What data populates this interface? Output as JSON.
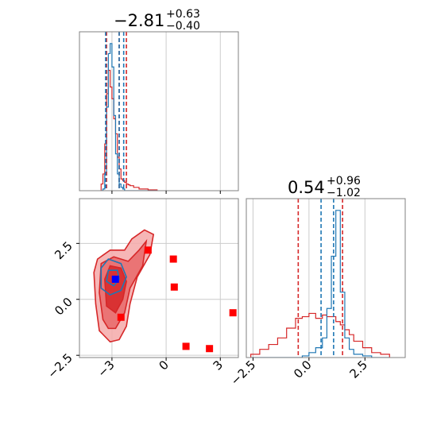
{
  "colors": {
    "red": "#d62728",
    "red_fill_dark": "#d62728",
    "red_fill_light": "#f2a0a0",
    "blue": "#1f77b4",
    "marker_red": "#ff0000",
    "marker_blue": "#0000ff",
    "grid": "#cccccc",
    "frame": "#808080"
  },
  "chart_data": [
    {
      "panel": "top-left",
      "type": "histogram",
      "title_value": "−2.81",
      "title_sup": "+0.63",
      "title_sub": "−0.40",
      "xlim": [
        -4.8,
        4.0
      ],
      "grid": true,
      "x_bins": [
        -3.6,
        -3.5,
        -3.4,
        -3.3,
        -3.2,
        -3.1,
        -3.0,
        -2.9,
        -2.8,
        -2.7,
        -2.6,
        -2.5,
        -2.4,
        -2.3,
        -2.2,
        -2.1,
        -2.0,
        -1.8,
        -1.5,
        -1.0,
        -0.5
      ],
      "series": [
        {
          "name": "",
          "color": "red",
          "counts": [
            0.04,
            0.1,
            0.28,
            0.58,
            0.72,
            0.62,
            0.55,
            0.43,
            0.34,
            0.2,
            0.13,
            0.07,
            0.06,
            0.05,
            0.04,
            0.035,
            0.03,
            0.02,
            0.01,
            0.005
          ]
        },
        {
          "name": "",
          "color": "blue",
          "counts": [
            0.0,
            0.01,
            0.1,
            0.5,
            0.82,
            0.88,
            0.74,
            0.45,
            0.22,
            0.1,
            0.04,
            0.02,
            0.01,
            0.0,
            0.0,
            0.0,
            0.0,
            0.0,
            0.0,
            0.0
          ]
        }
      ],
      "vlines": [
        {
          "x": -3.3,
          "color": "red"
        },
        {
          "x": -2.6,
          "color": "red"
        },
        {
          "x": -2.2,
          "color": "red"
        },
        {
          "x": -3.35,
          "color": "blue"
        },
        {
          "x": -2.6,
          "color": "blue"
        },
        {
          "x": -2.35,
          "color": "blue"
        }
      ]
    },
    {
      "panel": "bottom-right",
      "type": "histogram",
      "title_value": "0.54",
      "title_sup": "+0.96",
      "title_sub": "−1.02",
      "xlim": [
        -2.8,
        4.3
      ],
      "xticks": [
        -2.5,
        0.0,
        2.5
      ],
      "xtick_labels": [
        "−2.5",
        "0.0",
        "2.5"
      ],
      "grid": true,
      "x_bins": [
        -2.6,
        -2.2,
        -1.8,
        -1.4,
        -1.0,
        -0.6,
        -0.3,
        0.0,
        0.3,
        0.6,
        0.8,
        1.0,
        1.2,
        1.4,
        1.6,
        1.8,
        2.0,
        2.4,
        2.8,
        3.2,
        3.6
      ],
      "series": [
        {
          "name": "",
          "color": "red",
          "counts": [
            0.02,
            0.05,
            0.08,
            0.12,
            0.18,
            0.24,
            0.25,
            0.27,
            0.24,
            0.26,
            0.25,
            0.25,
            0.22,
            0.2,
            0.17,
            0.14,
            0.1,
            0.06,
            0.03,
            0.02
          ]
        },
        {
          "name": "",
          "color": "blue",
          "counts": [
            0.0,
            0.0,
            0.0,
            0.0,
            0.0,
            0.0,
            0.01,
            0.03,
            0.06,
            0.12,
            0.3,
            0.62,
            0.9,
            0.4,
            0.12,
            0.05,
            0.02,
            0.01,
            0.0,
            0.0
          ]
        }
      ],
      "vlines": [
        {
          "x": -0.48,
          "color": "red"
        },
        {
          "x": 0.54,
          "color": "blue"
        },
        {
          "x": 1.1,
          "color": "blue"
        },
        {
          "x": 1.5,
          "color": "red"
        }
      ]
    },
    {
      "panel": "bottom-left",
      "type": "scatter",
      "xlim": [
        -4.8,
        4.0
      ],
      "ylim": [
        -2.6,
        4.5
      ],
      "xticks": [
        -3,
        0,
        3
      ],
      "xtick_labels": [
        "−3",
        "0",
        "3"
      ],
      "yticks": [
        -2.5,
        0.0,
        2.5
      ],
      "ytick_labels": [
        "−2.5",
        "0.0",
        "2.5"
      ],
      "grid": true,
      "red_contours": [
        [
          [
            -3.7,
            -1.4
          ],
          [
            -3.9,
            -0.2
          ],
          [
            -4.0,
            1.2
          ],
          [
            -3.8,
            1.8
          ],
          [
            -3.1,
            2.2
          ],
          [
            -2.3,
            2.2
          ],
          [
            -1.9,
            2.7
          ],
          [
            -1.2,
            3.1
          ],
          [
            -0.7,
            2.9
          ],
          [
            -0.9,
            2.0
          ],
          [
            -1.6,
            1.0
          ],
          [
            -2.0,
            -0.2
          ],
          [
            -2.2,
            -1.2
          ],
          [
            -2.6,
            -1.8
          ],
          [
            -3.1,
            -1.9
          ]
        ],
        [
          [
            -3.5,
            -0.9
          ],
          [
            -3.7,
            0.3
          ],
          [
            -3.6,
            1.6
          ],
          [
            -2.9,
            1.9
          ],
          [
            -2.1,
            1.7
          ],
          [
            -1.5,
            2.2
          ],
          [
            -1.1,
            2.6
          ],
          [
            -1.3,
            1.5
          ],
          [
            -2.0,
            0.5
          ],
          [
            -2.3,
            -0.6
          ],
          [
            -2.8,
            -1.3
          ],
          [
            -3.2,
            -1.3
          ]
        ],
        [
          [
            -3.3,
            -0.3
          ],
          [
            -3.4,
            0.9
          ],
          [
            -3.1,
            1.5
          ],
          [
            -2.5,
            1.4
          ],
          [
            -2.2,
            0.8
          ],
          [
            -2.4,
            0.0
          ],
          [
            -2.8,
            -0.6
          ]
        ]
      ],
      "blue_contours": [
        [
          [
            -3.6,
            0.5
          ],
          [
            -3.6,
            1.4
          ],
          [
            -3.2,
            1.8
          ],
          [
            -2.5,
            1.6
          ],
          [
            -2.2,
            1.0
          ],
          [
            -2.5,
            0.4
          ],
          [
            -3.1,
            0.2
          ]
        ],
        [
          [
            -3.3,
            0.8
          ],
          [
            -3.2,
            1.3
          ],
          [
            -2.7,
            1.3
          ],
          [
            -2.6,
            0.9
          ],
          [
            -2.9,
            0.6
          ]
        ]
      ],
      "red_markers": [
        {
          "x": -1.0,
          "y": 2.2
        },
        {
          "x": 0.4,
          "y": 1.8
        },
        {
          "x": 0.45,
          "y": 0.55
        },
        {
          "x": -2.5,
          "y": -0.8
        },
        {
          "x": 1.1,
          "y": -2.1
        },
        {
          "x": 2.4,
          "y": -2.2
        },
        {
          "x": 3.7,
          "y": -0.6
        }
      ],
      "blue_markers": [
        {
          "x": -2.81,
          "y": 0.9
        }
      ]
    }
  ]
}
